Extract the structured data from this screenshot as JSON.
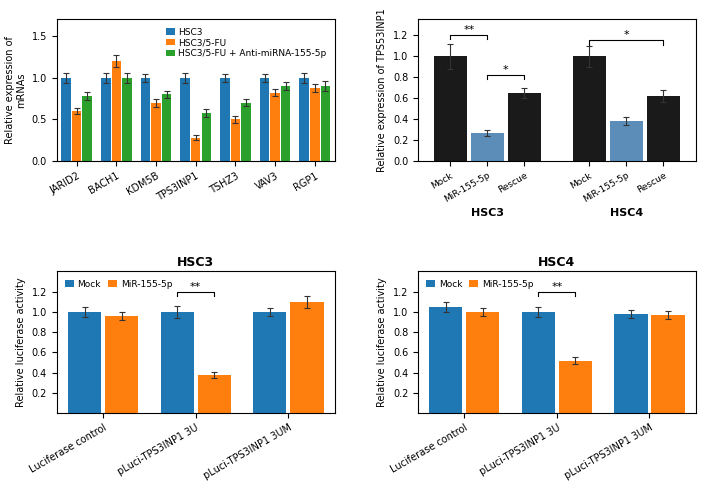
{
  "chart_data": [
    {
      "type": "bar",
      "ylabel": "Relative expression of\nmRNAs",
      "categories": [
        "JARID2",
        "BACH1",
        "KDM5B",
        "TPS3INP1",
        "TSHZ3",
        "VAV3",
        "RGP1"
      ],
      "series": [
        {
          "name": "HSC3",
          "values": [
            1.0,
            1.0,
            1.0,
            1.0,
            1.0,
            1.0,
            1.0
          ],
          "errors": [
            0.06,
            0.06,
            0.05,
            0.06,
            0.05,
            0.05,
            0.06
          ]
        },
        {
          "name": "HSC3/5-FU",
          "values": [
            0.6,
            1.2,
            0.7,
            0.28,
            0.5,
            0.82,
            0.88
          ],
          "errors": [
            0.04,
            0.07,
            0.05,
            0.03,
            0.04,
            0.04,
            0.05
          ]
        },
        {
          "name": "HSC3/5-FU + Anti-miRNA-155-5p",
          "values": [
            0.78,
            1.0,
            0.8,
            0.58,
            0.7,
            0.9,
            0.9
          ],
          "errors": [
            0.05,
            0.06,
            0.04,
            0.05,
            0.04,
            0.05,
            0.06
          ]
        }
      ],
      "ylim": [
        0,
        1.7
      ],
      "yticks": [
        {
          "value": 0,
          "label": "0.0"
        },
        {
          "value": 0.5,
          "label": "0.5"
        },
        {
          "value": 1.0,
          "label": "1.0"
        },
        {
          "value": 1.5,
          "label": "1.5"
        }
      ],
      "legend": "upper right"
    },
    {
      "type": "bar",
      "ylabel": "Relative expression of TPS53INP1",
      "categories": [
        "HSC3",
        "HSC4"
      ],
      "series": [
        {
          "name": "Mock",
          "color": "#1a1a1a",
          "values": [
            1.0,
            1.0
          ],
          "errors": [
            0.12,
            0.1
          ]
        },
        {
          "name": "MiR-155-5p",
          "color": "#5b8db8",
          "values": [
            0.27,
            0.38
          ],
          "errors": [
            0.03,
            0.04
          ]
        },
        {
          "name": "Rescue",
          "color": "#1a1a1a",
          "values": [
            0.65,
            0.62
          ],
          "errors": [
            0.05,
            0.06
          ]
        }
      ],
      "ylim": [
        0,
        1.35
      ],
      "yticks": [
        {
          "value": 0,
          "label": "0.0"
        },
        {
          "value": 0.2,
          "label": "0.2"
        },
        {
          "value": 0.4,
          "label": "0.4"
        },
        {
          "value": 0.6,
          "label": "0.6"
        },
        {
          "value": 0.8,
          "label": "0.8"
        },
        {
          "value": 1.0,
          "label": "1.0"
        },
        {
          "value": 1.2,
          "label": "1.2"
        }
      ],
      "annotations": [
        {
          "text": "**",
          "category": "HSC3",
          "from": "Mock",
          "to": "MiR-155-5p",
          "y": 1.2
        },
        {
          "text": "*",
          "category": "HSC3",
          "from": "MiR-155-5p",
          "to": "Rescue",
          "y": 0.82
        },
        {
          "text": "*",
          "category": "HSC4",
          "from": "Mock",
          "to": "Rescue",
          "y": 1.15
        }
      ]
    },
    {
      "type": "bar",
      "title": "HSC3",
      "ylabel": "Relative luciferase activity",
      "categories": [
        "Luciferase control",
        "pLuci-TPS3INP1 3U",
        "pLuci-TPS3INP1 3UM"
      ],
      "series": [
        {
          "name": "Mock",
          "values": [
            1.0,
            1.0,
            1.0
          ],
          "errors": [
            0.05,
            0.06,
            0.04
          ]
        },
        {
          "name": "MiR-155-5p",
          "values": [
            0.96,
            0.38,
            1.1
          ],
          "errors": [
            0.04,
            0.03,
            0.06
          ]
        }
      ],
      "ylim": [
        0,
        1.4
      ],
      "yticks": [
        {
          "value": 0.2,
          "label": "0.2"
        },
        {
          "value": 0.4,
          "label": "0.4"
        },
        {
          "value": 0.6,
          "label": "0.6"
        },
        {
          "value": 0.8,
          "label": "0.8"
        },
        {
          "value": 1.0,
          "label": "1.0"
        },
        {
          "value": 1.2,
          "label": "1.2"
        }
      ],
      "legend": "upper left",
      "annotations": [
        {
          "text": "**",
          "category": "pLuci-TPS3INP1 3U",
          "from": "Mock",
          "to": "MiR-155-5p",
          "y": 1.2
        }
      ]
    },
    {
      "type": "bar",
      "title": "HSC4",
      "ylabel": "Relative luciferase activity",
      "categories": [
        "Luciferase control",
        "pLuci-TPS3INP1 3U",
        "pLuci-TPS3INP1 3UM"
      ],
      "series": [
        {
          "name": "Mock",
          "values": [
            1.05,
            1.0,
            0.98
          ],
          "errors": [
            0.05,
            0.05,
            0.04
          ]
        },
        {
          "name": "MiR-155-5p",
          "values": [
            1.0,
            0.52,
            0.97
          ],
          "errors": [
            0.04,
            0.03,
            0.04
          ]
        }
      ],
      "ylim": [
        0,
        1.4
      ],
      "yticks": [
        {
          "value": 0.2,
          "label": "0.2"
        },
        {
          "value": 0.4,
          "label": "0.4"
        },
        {
          "value": 0.6,
          "label": "0.6"
        },
        {
          "value": 0.8,
          "label": "0.8"
        },
        {
          "value": 1.0,
          "label": "1.0"
        },
        {
          "value": 1.2,
          "label": "1.2"
        }
      ],
      "legend": "upper left",
      "annotations": [
        {
          "text": "**",
          "category": "pLuci-TPS3INP1 3U",
          "from": "Mock",
          "to": "MiR-155-5p",
          "y": 1.2
        }
      ]
    }
  ]
}
